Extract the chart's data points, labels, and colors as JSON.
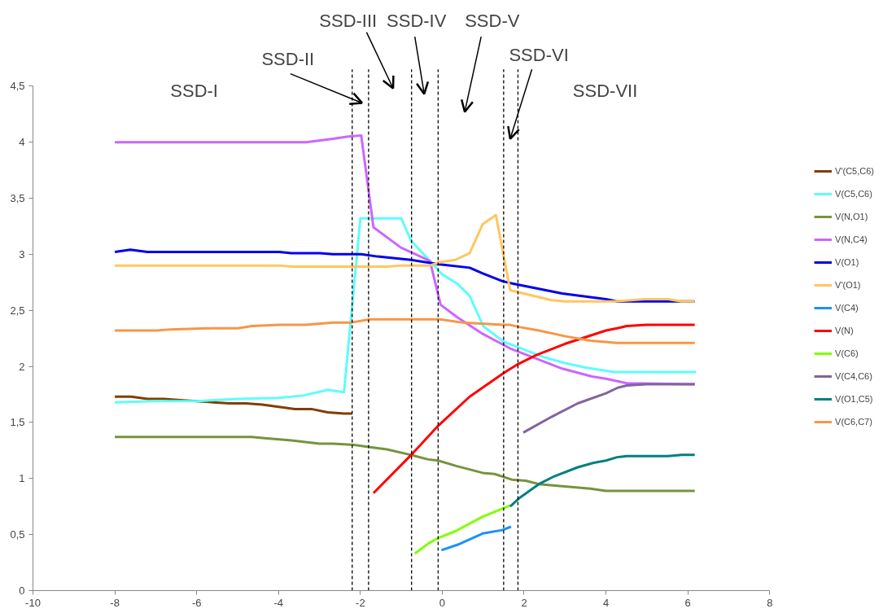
{
  "chart_data": {
    "type": "line",
    "xlim": [
      -10,
      8
    ],
    "ylim": [
      0,
      4.5
    ],
    "xticks": [
      -10,
      -8,
      -6,
      -4,
      -2,
      0,
      2,
      4,
      6,
      8
    ],
    "yticks": [
      0,
      {
        "value": 0.5,
        "label": "0,5"
      },
      1,
      {
        "value": 1.5,
        "label": "1,5"
      },
      2,
      {
        "value": 2.5,
        "label": "2,5"
      },
      3,
      {
        "value": 3.5,
        "label": "3,5"
      },
      4,
      {
        "value": 4.5,
        "label": "4,5"
      }
    ],
    "grid": false,
    "legend": "right",
    "line_style": "solid",
    "marker": "none",
    "ref_lines": [
      {
        "axis": "x",
        "value": -2.2,
        "color": "#000000",
        "line_style": "dashed"
      },
      {
        "axis": "x",
        "value": -1.8,
        "color": "#000000",
        "line_style": "dashed"
      },
      {
        "axis": "x",
        "value": -0.75,
        "color": "#000000",
        "line_style": "dashed"
      },
      {
        "axis": "x",
        "value": -0.1,
        "color": "#000000",
        "line_style": "dashed"
      },
      {
        "axis": "x",
        "value": 1.5,
        "color": "#000000",
        "line_style": "dashed"
      },
      {
        "axis": "x",
        "value": 1.85,
        "color": "#000000",
        "line_style": "dashed"
      }
    ],
    "annotations": [
      "SSD-I",
      "SSD-II",
      "SSD-III",
      "SSD-IV",
      "SSD-V",
      "SSD-VI",
      "SSD-VII"
    ],
    "series": [
      {
        "name": "V'(C5,C6)",
        "color": "#7f3f00",
        "x": [
          -8,
          -7.6,
          -7.2,
          -6.8,
          -6.4,
          -6,
          -5.6,
          -5.2,
          -4.8,
          -4.4,
          -4,
          -3.6,
          -3.2,
          -2.8,
          -2.4,
          -2.2
        ],
        "values": [
          1.73,
          1.73,
          1.71,
          1.71,
          1.7,
          1.69,
          1.68,
          1.67,
          1.67,
          1.66,
          1.64,
          1.62,
          1.62,
          1.59,
          1.58,
          1.58
        ]
      },
      {
        "name": "V(C5,C6)",
        "color": "#5ffcfc",
        "x": [
          -8,
          -7,
          -6,
          -5,
          -4,
          -3.4,
          -2.8,
          -2.4,
          -2.0,
          -1.0,
          -0.76,
          -0.3,
          0,
          0.36,
          0.67,
          1.0,
          1.5,
          2.0,
          2.5,
          3.0,
          3.5,
          4.2,
          6.2
        ],
        "values": [
          1.68,
          1.69,
          1.69,
          1.71,
          1.72,
          1.74,
          1.79,
          1.77,
          3.32,
          3.32,
          3.12,
          2.94,
          2.82,
          2.74,
          2.63,
          2.36,
          2.22,
          2.15,
          2.08,
          2.03,
          1.99,
          1.95,
          1.95
        ]
      },
      {
        "name": "V(N,O1)",
        "color": "#77933c",
        "x": [
          -8,
          -4.65,
          -4.34,
          -3.68,
          -3.0,
          -2.67,
          -2.15,
          -1.77,
          -1.35,
          -0.76,
          -0.34,
          -0.1,
          0.36,
          0.99,
          1.28,
          1.7,
          2.04,
          2.36,
          2.99,
          3.62,
          4.0,
          6.17
        ],
        "values": [
          1.37,
          1.37,
          1.36,
          1.34,
          1.31,
          1.31,
          1.3,
          1.28,
          1.26,
          1.21,
          1.17,
          1.16,
          1.11,
          1.05,
          1.04,
          0.99,
          0.98,
          0.95,
          0.93,
          0.91,
          0.89,
          0.89
        ]
      },
      {
        "name": "V(N,C4)",
        "color": "#cc66ff",
        "x": [
          -8,
          -3.33,
          -2.67,
          -2.3,
          -1.98,
          -1.68,
          -1.01,
          -0.3,
          -0.04,
          0.36,
          0.99,
          1.66,
          2.29,
          2.93,
          3.66,
          4.0,
          4.51,
          6.17
        ],
        "values": [
          4.0,
          4.0,
          4.03,
          4.05,
          4.06,
          3.24,
          3.06,
          2.94,
          2.55,
          2.44,
          2.29,
          2.16,
          2.07,
          1.98,
          1.91,
          1.89,
          1.85,
          1.84
        ]
      },
      {
        "name": "V(O1)",
        "color": "#0000ee",
        "x": [
          -8,
          -7.62,
          -7.2,
          -3.98,
          -3.68,
          -2.99,
          -2.67,
          -1.98,
          -1.58,
          -0.76,
          -0.06,
          0.67,
          0.99,
          1.47,
          1.71,
          2.93,
          4.0,
          4.27,
          6.17
        ],
        "values": [
          3.02,
          3.04,
          3.02,
          3.02,
          3.01,
          3.01,
          3.0,
          3.0,
          2.98,
          2.95,
          2.91,
          2.88,
          2.83,
          2.76,
          2.74,
          2.65,
          2.6,
          2.58,
          2.58
        ]
      },
      {
        "name": "V'(O1)",
        "color": "#ffc65f",
        "x": [
          -8,
          -3.98,
          -3.68,
          -1.35,
          -0.97,
          -0.3,
          -0.06,
          0.32,
          0.67,
          0.99,
          1.31,
          1.66,
          1.98,
          2.67,
          2.99,
          4.19,
          4.95,
          5.52,
          5.85,
          6.17
        ],
        "values": [
          2.9,
          2.9,
          2.89,
          2.89,
          2.9,
          2.9,
          2.93,
          2.95,
          3.01,
          3.27,
          3.35,
          2.68,
          2.65,
          2.59,
          2.58,
          2.58,
          2.6,
          2.6,
          2.58,
          2.58
        ]
      },
      {
        "name": "V(C4)",
        "color": "#1e8fff",
        "x": [
          -0.02,
          0.38,
          0.99,
          1.47,
          1.68
        ],
        "values": [
          0.36,
          0.41,
          0.51,
          0.54,
          0.57
        ]
      },
      {
        "name": "V(N)",
        "color": "#ff0000",
        "x": [
          -1.68,
          -0.76,
          -0.1,
          0.67,
          1.5,
          1.85,
          2.29,
          2.99,
          4.0,
          4.27,
          4.51,
          4.99,
          6.17
        ],
        "values": [
          0.87,
          1.21,
          1.47,
          1.73,
          1.94,
          2.02,
          2.1,
          2.2,
          2.32,
          2.34,
          2.36,
          2.37,
          2.37
        ]
      },
      {
        "name": "V(C6)",
        "color": "#80ff00",
        "x": [
          -0.67,
          -0.34,
          -0.1,
          0.32,
          0.99,
          1.66
        ],
        "values": [
          0.33,
          0.42,
          0.47,
          0.53,
          0.66,
          0.76
        ]
      },
      {
        "name": "V(C4,C6)",
        "color": "#8064a2",
        "x": [
          1.98,
          2.67,
          3.31,
          4.0,
          4.29,
          4.51,
          4.99,
          6.17
        ],
        "values": [
          1.41,
          1.55,
          1.67,
          1.76,
          1.81,
          1.83,
          1.84,
          1.84
        ]
      },
      {
        "name": "V(O1,C5)",
        "color": "#008080",
        "x": [
          1.66,
          1.9,
          2.36,
          2.74,
          3.31,
          3.7,
          4.0,
          4.27,
          4.51,
          5.52,
          5.85,
          6.17
        ],
        "values": [
          0.75,
          0.83,
          0.95,
          1.02,
          1.1,
          1.14,
          1.16,
          1.19,
          1.2,
          1.2,
          1.21,
          1.21
        ]
      },
      {
        "name": "V(C6,C7)",
        "color": "#f79646",
        "x": [
          -8,
          -6.97,
          -6.65,
          -5.66,
          -4.99,
          -4.65,
          -3.98,
          -3.33,
          -2.67,
          -2.25,
          -1.77,
          -0.06,
          0.51,
          1.47,
          1.66,
          1.9,
          2.36,
          2.99,
          3.62,
          4.27,
          6.17
        ],
        "values": [
          2.32,
          2.32,
          2.33,
          2.34,
          2.34,
          2.36,
          2.37,
          2.37,
          2.39,
          2.39,
          2.42,
          2.42,
          2.39,
          2.37,
          2.37,
          2.35,
          2.32,
          2.27,
          2.23,
          2.21,
          2.21
        ]
      }
    ]
  }
}
